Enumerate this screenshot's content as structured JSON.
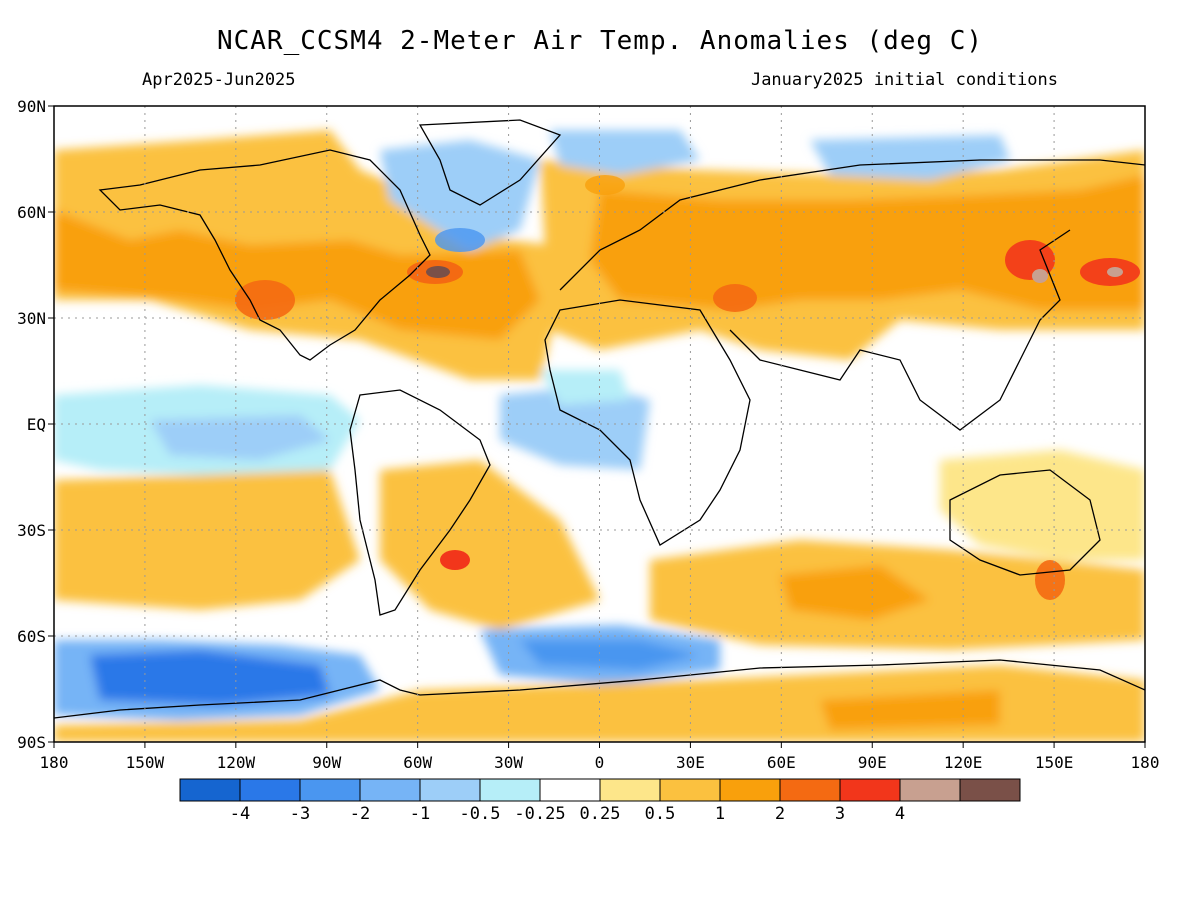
{
  "title": "NCAR_CCSM4 2-Meter Air Temp. Anomalies (deg C)",
  "period": "Apr2025-Jun2025",
  "initial_conditions": "January2025 initial conditions",
  "lat_labels": [
    "90N",
    "60N",
    "30N",
    "EQ",
    "30S",
    "60S",
    "90S"
  ],
  "lon_labels": [
    "180",
    "150W",
    "120W",
    "90W",
    "60W",
    "30W",
    "0",
    "30E",
    "60E",
    "90E",
    "120E",
    "150E",
    "180"
  ],
  "colorbar": {
    "colors": [
      "#1565d0",
      "#2a78e8",
      "#4a96f0",
      "#76b4f6",
      "#9dcef8",
      "#b6eef8",
      "#ffffff",
      "#fde68a",
      "#fbc13f",
      "#f9a00c",
      "#f46a12",
      "#f2361b",
      "#c8a090",
      "#7a5048"
    ],
    "labels": [
      "-4",
      "-3",
      "-2",
      "-1",
      "-0.5",
      "-0.25",
      "0.25",
      "0.5",
      "1",
      "2",
      "3",
      "4"
    ]
  },
  "colors": {
    "land_outline": "#000000",
    "grid": "#999999"
  }
}
